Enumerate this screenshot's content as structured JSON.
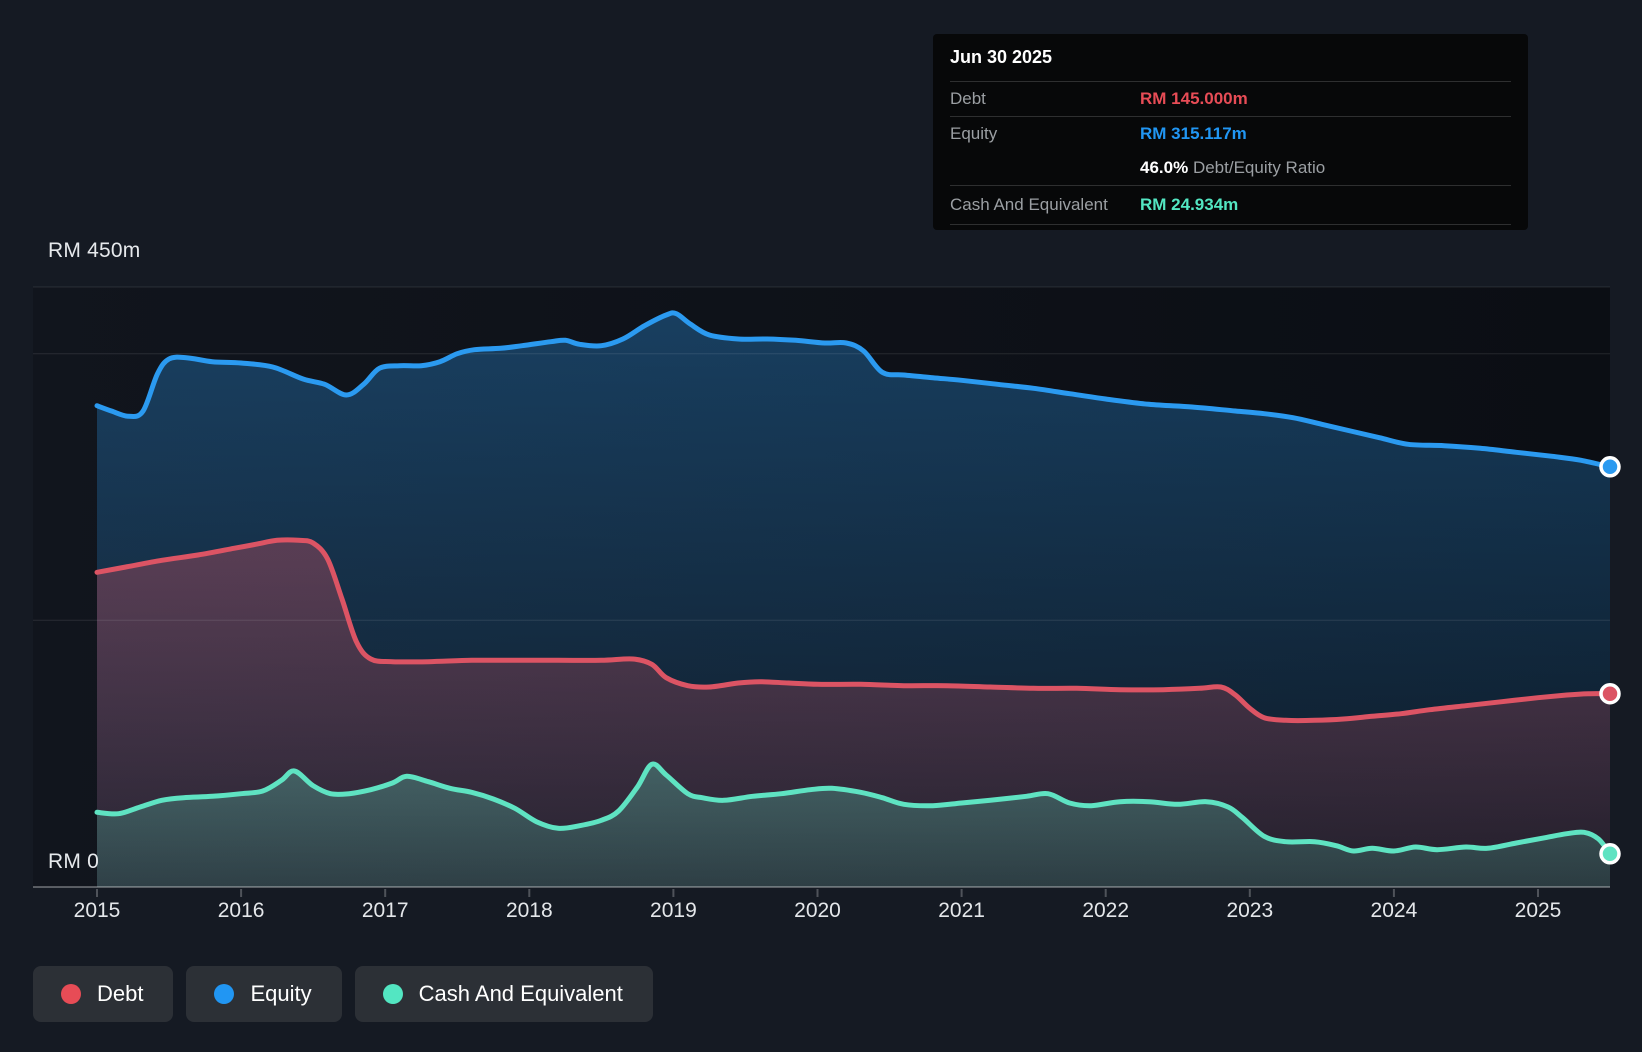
{
  "colors": {
    "page_bg": "#151a23",
    "plot_bg_left": "#11151d",
    "plot_bg_right": "#0b0e14",
    "tooltip_bg": "#070809",
    "legend_chip_bg": "#2c3036",
    "grid": "rgba(255,255,255,0.10)",
    "axis_line": "rgba(255,255,255,0.30)",
    "tick": "rgba(255,255,255,0.25)",
    "debt": "#dc5464",
    "equity": "#2b9af0",
    "cash": "#5fe3c2",
    "debt_text": "#e74c56",
    "equity_text": "#2196f3",
    "cash_text": "#53e6c2"
  },
  "tooltip": {
    "date": "Jun 30 2025",
    "debt_label": "Debt",
    "debt_value": "RM 145.000m",
    "equity_label": "Equity",
    "equity_value": "RM 315.117m",
    "ratio_value": "46.0%",
    "ratio_label": "Debt/Equity Ratio",
    "cash_label": "Cash And Equivalent",
    "cash_value": "RM 24.934m"
  },
  "y_axis": {
    "top_label": "RM 450m",
    "zero_label": "RM 0",
    "max": 450,
    "gridline_values": [
      450,
      400,
      200,
      0
    ]
  },
  "x_axis": {
    "years": [
      "2015",
      "2016",
      "2017",
      "2018",
      "2019",
      "2020",
      "2021",
      "2022",
      "2023",
      "2024",
      "2025"
    ]
  },
  "legend": [
    {
      "id": "debt",
      "label": "Debt"
    },
    {
      "id": "equity",
      "label": "Equity"
    },
    {
      "id": "cash",
      "label": "Cash And Equivalent"
    }
  ],
  "chart_data": {
    "type": "area",
    "title": "Debt to Equity History (RM millions)",
    "unit": "RM millions",
    "x_range": [
      2015.0,
      2025.5
    ],
    "y_range": [
      0,
      450
    ],
    "grid": true,
    "legend_position": "bottom-left",
    "series": [
      {
        "name": "Equity",
        "color_key": "equity",
        "end_value": 315.117,
        "points": [
          [
            2015.0,
            361
          ],
          [
            2015.1,
            357
          ],
          [
            2015.22,
            353
          ],
          [
            2015.32,
            357
          ],
          [
            2015.42,
            385
          ],
          [
            2015.5,
            396
          ],
          [
            2015.62,
            397
          ],
          [
            2015.8,
            394
          ],
          [
            2016.0,
            393
          ],
          [
            2016.22,
            390
          ],
          [
            2016.43,
            381
          ],
          [
            2016.58,
            377
          ],
          [
            2016.73,
            369
          ],
          [
            2016.85,
            377
          ],
          [
            2016.96,
            389
          ],
          [
            2017.1,
            391
          ],
          [
            2017.25,
            391
          ],
          [
            2017.38,
            394
          ],
          [
            2017.5,
            400
          ],
          [
            2017.62,
            403
          ],
          [
            2017.8,
            404
          ],
          [
            2017.95,
            406
          ],
          [
            2018.15,
            409
          ],
          [
            2018.25,
            410
          ],
          [
            2018.35,
            407
          ],
          [
            2018.5,
            406
          ],
          [
            2018.65,
            411
          ],
          [
            2018.8,
            421
          ],
          [
            2018.95,
            429
          ],
          [
            2019.02,
            430
          ],
          [
            2019.12,
            422
          ],
          [
            2019.25,
            414
          ],
          [
            2019.45,
            411
          ],
          [
            2019.65,
            411
          ],
          [
            2019.85,
            410
          ],
          [
            2020.05,
            408
          ],
          [
            2020.2,
            408
          ],
          [
            2020.32,
            402
          ],
          [
            2020.45,
            386
          ],
          [
            2020.6,
            384
          ],
          [
            2020.8,
            382
          ],
          [
            2021.0,
            380
          ],
          [
            2021.25,
            377
          ],
          [
            2021.5,
            374
          ],
          [
            2021.75,
            370
          ],
          [
            2022.0,
            366
          ],
          [
            2022.3,
            362
          ],
          [
            2022.6,
            360
          ],
          [
            2022.9,
            357
          ],
          [
            2023.1,
            355
          ],
          [
            2023.3,
            352
          ],
          [
            2023.5,
            347
          ],
          [
            2023.7,
            342
          ],
          [
            2023.9,
            337
          ],
          [
            2024.1,
            332
          ],
          [
            2024.35,
            331
          ],
          [
            2024.6,
            329
          ],
          [
            2024.85,
            326
          ],
          [
            2025.1,
            323
          ],
          [
            2025.3,
            320
          ],
          [
            2025.5,
            315.117
          ]
        ]
      },
      {
        "name": "Debt",
        "color_key": "debt",
        "end_value": 145.0,
        "points": [
          [
            2015.0,
            236
          ],
          [
            2015.2,
            240
          ],
          [
            2015.45,
            245
          ],
          [
            2015.7,
            249
          ],
          [
            2015.95,
            254
          ],
          [
            2016.1,
            257
          ],
          [
            2016.25,
            260
          ],
          [
            2016.4,
            260
          ],
          [
            2016.5,
            258
          ],
          [
            2016.6,
            246
          ],
          [
            2016.7,
            216
          ],
          [
            2016.8,
            184
          ],
          [
            2016.9,
            171
          ],
          [
            2017.05,
            169
          ],
          [
            2017.3,
            169
          ],
          [
            2017.6,
            170
          ],
          [
            2017.9,
            170
          ],
          [
            2018.2,
            170
          ],
          [
            2018.5,
            170
          ],
          [
            2018.72,
            171
          ],
          [
            2018.85,
            167
          ],
          [
            2018.95,
            157
          ],
          [
            2019.1,
            151
          ],
          [
            2019.25,
            150
          ],
          [
            2019.45,
            153
          ],
          [
            2019.6,
            154
          ],
          [
            2019.8,
            153
          ],
          [
            2020.0,
            152
          ],
          [
            2020.3,
            152
          ],
          [
            2020.6,
            151
          ],
          [
            2020.9,
            151
          ],
          [
            2021.2,
            150
          ],
          [
            2021.5,
            149
          ],
          [
            2021.8,
            149
          ],
          [
            2022.1,
            148
          ],
          [
            2022.4,
            148
          ],
          [
            2022.65,
            149
          ],
          [
            2022.8,
            150
          ],
          [
            2022.9,
            144
          ],
          [
            2023.0,
            134
          ],
          [
            2023.1,
            127
          ],
          [
            2023.25,
            125
          ],
          [
            2023.45,
            125
          ],
          [
            2023.65,
            126
          ],
          [
            2023.85,
            128
          ],
          [
            2024.05,
            130
          ],
          [
            2024.25,
            133
          ],
          [
            2024.5,
            136
          ],
          [
            2024.75,
            139
          ],
          [
            2025.0,
            142
          ],
          [
            2025.2,
            144
          ],
          [
            2025.35,
            145
          ],
          [
            2025.5,
            145.0
          ]
        ]
      },
      {
        "name": "Cash And Equivalent",
        "color_key": "cash",
        "end_value": 24.934,
        "points": [
          [
            2015.0,
            56
          ],
          [
            2015.15,
            55
          ],
          [
            2015.3,
            60
          ],
          [
            2015.45,
            65
          ],
          [
            2015.6,
            67
          ],
          [
            2015.8,
            68
          ],
          [
            2016.0,
            70
          ],
          [
            2016.15,
            72
          ],
          [
            2016.28,
            80
          ],
          [
            2016.37,
            87
          ],
          [
            2016.5,
            76
          ],
          [
            2016.62,
            70
          ],
          [
            2016.75,
            70
          ],
          [
            2016.9,
            73
          ],
          [
            2017.05,
            78
          ],
          [
            2017.15,
            83
          ],
          [
            2017.3,
            79
          ],
          [
            2017.45,
            74
          ],
          [
            2017.6,
            71
          ],
          [
            2017.75,
            66
          ],
          [
            2017.9,
            59
          ],
          [
            2018.05,
            49
          ],
          [
            2018.2,
            44
          ],
          [
            2018.35,
            46
          ],
          [
            2018.5,
            50
          ],
          [
            2018.62,
            57
          ],
          [
            2018.75,
            75
          ],
          [
            2018.85,
            92
          ],
          [
            2018.95,
            84
          ],
          [
            2019.1,
            70
          ],
          [
            2019.2,
            67
          ],
          [
            2019.35,
            65
          ],
          [
            2019.55,
            68
          ],
          [
            2019.75,
            70
          ],
          [
            2019.95,
            73
          ],
          [
            2020.1,
            74
          ],
          [
            2020.3,
            71
          ],
          [
            2020.45,
            67
          ],
          [
            2020.6,
            62
          ],
          [
            2020.8,
            61
          ],
          [
            2021.0,
            63
          ],
          [
            2021.2,
            65
          ],
          [
            2021.45,
            68
          ],
          [
            2021.6,
            70
          ],
          [
            2021.75,
            63
          ],
          [
            2021.9,
            61
          ],
          [
            2022.1,
            64
          ],
          [
            2022.3,
            64
          ],
          [
            2022.5,
            62
          ],
          [
            2022.7,
            64
          ],
          [
            2022.85,
            60
          ],
          [
            2022.95,
            52
          ],
          [
            2023.1,
            38
          ],
          [
            2023.25,
            34
          ],
          [
            2023.45,
            34
          ],
          [
            2023.6,
            31
          ],
          [
            2023.72,
            27
          ],
          [
            2023.85,
            29
          ],
          [
            2024.0,
            27
          ],
          [
            2024.15,
            30
          ],
          [
            2024.3,
            28
          ],
          [
            2024.5,
            30
          ],
          [
            2024.65,
            29
          ],
          [
            2024.85,
            33
          ],
          [
            2025.05,
            37
          ],
          [
            2025.2,
            40
          ],
          [
            2025.32,
            41
          ],
          [
            2025.42,
            36
          ],
          [
            2025.5,
            24.934
          ]
        ]
      }
    ]
  }
}
